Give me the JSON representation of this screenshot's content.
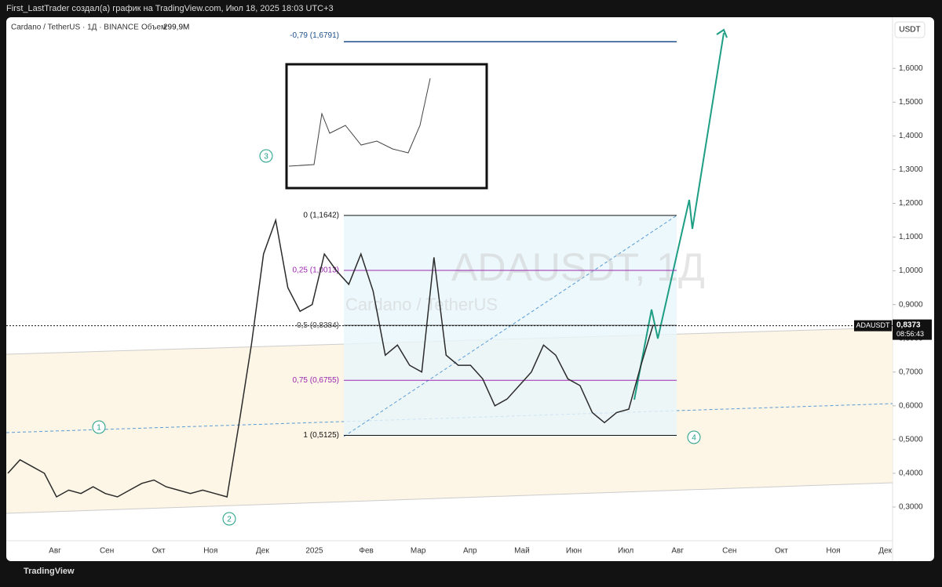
{
  "header": "First_LastTrader создал(а) график на TradingView.com, Июл 18, 2025 18:03 UTC+3",
  "footer": "TradingView",
  "chart_data": {
    "type": "line",
    "legend": {
      "symbol": "Cardano / TetherUS · 1Д · BINANCE",
      "volume_label": "Объем",
      "volume": "299,9M"
    },
    "watermark": [
      "ADAUSDT, 1Д",
      "Cardano / TetherUS"
    ],
    "currency_button": "USDT",
    "series": [
      {
        "name": "ADAUSDT",
        "color": "#2b2b2b",
        "values": [
          0.4,
          0.44,
          0.42,
          0.4,
          0.33,
          0.35,
          0.34,
          0.36,
          0.34,
          0.33,
          0.35,
          0.37,
          0.38,
          0.36,
          0.35,
          0.34,
          0.35,
          0.34,
          0.33,
          0.55,
          0.78,
          1.05,
          1.15,
          0.95,
          0.88,
          0.9,
          1.05,
          1.0,
          0.96,
          1.05,
          0.94,
          0.75,
          0.78,
          0.72,
          0.7,
          1.04,
          0.75,
          0.72,
          0.72,
          0.68,
          0.6,
          0.62,
          0.66,
          0.7,
          0.78,
          0.75,
          0.68,
          0.66,
          0.58,
          0.55,
          0.58,
          0.59,
          0.72,
          0.84
        ]
      }
    ],
    "ylim": [
      0.2,
      1.74
    ],
    "yticks": [
      {
        "value": 0.3,
        "label": "0,3000"
      },
      {
        "value": 0.4,
        "label": "0,4000"
      },
      {
        "value": 0.5,
        "label": "0,5000"
      },
      {
        "value": 0.6,
        "label": "0,6000"
      },
      {
        "value": 0.7,
        "label": "0,7000"
      },
      {
        "value": 0.8,
        "label": "0,8000"
      },
      {
        "value": 0.9,
        "label": "0,9000"
      },
      {
        "value": 1.0,
        "label": "1,0000"
      },
      {
        "value": 1.1,
        "label": "1,1000"
      },
      {
        "value": 1.2,
        "label": "1,2000"
      },
      {
        "value": 1.3,
        "label": "1,3000"
      },
      {
        "value": 1.4,
        "label": "1,4000"
      },
      {
        "value": 1.5,
        "label": "1,5000"
      },
      {
        "value": 1.6,
        "label": "1,6000"
      }
    ],
    "x_axis_labels": [
      "Авг",
      "Сен",
      "Окт",
      "Ноя",
      "Дек",
      "2025",
      "Фев",
      "Мар",
      "Апр",
      "Май",
      "Июн",
      "Июл",
      "Авг",
      "Сен",
      "Окт",
      "Ноя",
      "Дек"
    ],
    "fib_levels": [
      {
        "value": 1.6791,
        "label": "-0,79 (1,6791)",
        "color": "#1e4f8a"
      },
      {
        "value": 1.1642,
        "label": "0 (1,1642)",
        "color": "#111111"
      },
      {
        "value": 1.0013,
        "label": "0,25 (1,0013)",
        "color": "#9c27b0"
      },
      {
        "value": 0.8384,
        "label": "0,5 (0,8384)",
        "color": "#444444"
      },
      {
        "value": 0.6755,
        "label": "0,75 (0,6755)",
        "color": "#9c27b0"
      },
      {
        "value": 0.5125,
        "label": "1 (0,5125)",
        "color": "#111111"
      }
    ],
    "current_price": {
      "symbol": "ADAUSDT",
      "value": 0.8373,
      "label": "0,8373",
      "countdown": "08:56:43"
    },
    "waves": [
      "1",
      "2",
      "3",
      "4"
    ]
  }
}
